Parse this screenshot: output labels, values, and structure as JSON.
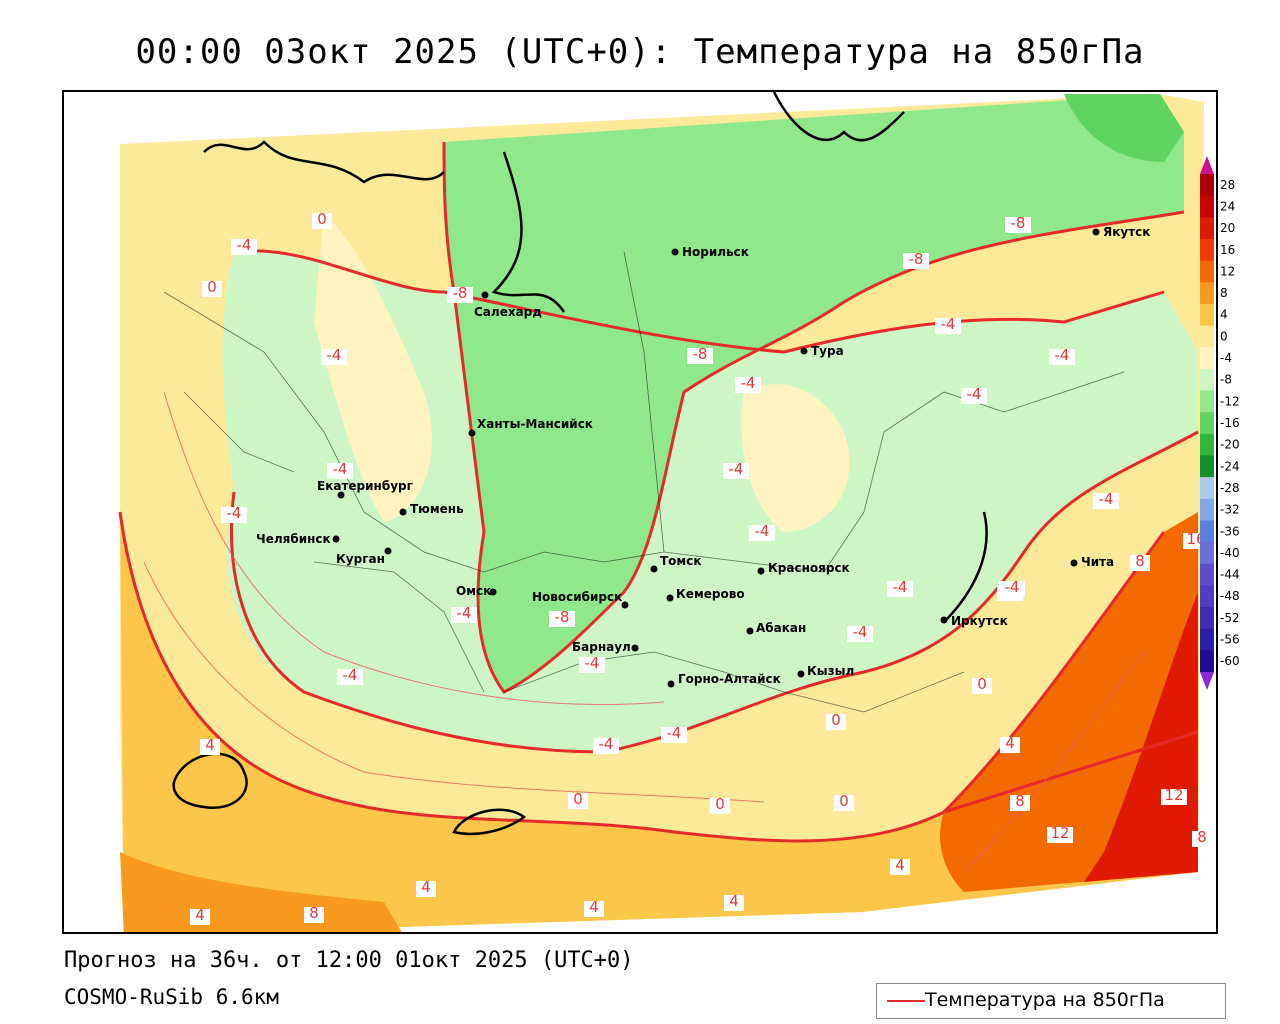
{
  "title": "00:00 03окт 2025 (UTC+0): Температура на 850гПа",
  "subtitle": "Прогноз на 36ч. от 12:00 01окт 2025 (UTC+0)",
  "model": "COSMO-RuSib 6.6км",
  "legend": {
    "label": "Температура на 850гПа",
    "line_color": "#e62a2a"
  },
  "colorbar": {
    "labels": [
      "28",
      "24",
      "20",
      "16",
      "12",
      "8",
      "4",
      "0",
      "-4",
      "-8",
      "-12",
      "-16",
      "-20",
      "-24",
      "-28",
      "-32",
      "-36",
      "-40",
      "-44",
      "-48",
      "-52",
      "-56",
      "-60"
    ],
    "colors": [
      "#a80000",
      "#c80000",
      "#e01a00",
      "#f03a00",
      "#f26a00",
      "#f99a1e",
      "#fcc64a",
      "#fde99a",
      "#fff4c0",
      "#cdf6c4",
      "#8fe88a",
      "#5fd45f",
      "#2fb83a",
      "#13902c",
      "#a8ccec",
      "#80a8e8",
      "#5a80e0",
      "#6e6edc",
      "#5a50cc",
      "#4a40c0",
      "#3a30b0",
      "#2820a0",
      "#1c1090"
    ]
  },
  "cities": [
    {
      "name": "Норильск"
    },
    {
      "name": "Якутск"
    },
    {
      "name": "Салехард"
    },
    {
      "name": "Тура"
    },
    {
      "name": "Ханты-Мансийск"
    },
    {
      "name": "Екатеринбург"
    },
    {
      "name": "Тюмень"
    },
    {
      "name": "Челябинск"
    },
    {
      "name": "Курган"
    },
    {
      "name": "Омск"
    },
    {
      "name": "Новосибирск"
    },
    {
      "name": "Томск"
    },
    {
      "name": "Кемерово"
    },
    {
      "name": "Красноярск"
    },
    {
      "name": "Абакан"
    },
    {
      "name": "Барнаул"
    },
    {
      "name": "Горно-Алтайск"
    },
    {
      "name": "Кызыл"
    },
    {
      "name": "Иркутск"
    },
    {
      "name": "Чита"
    }
  ],
  "contour_labels": [
    "0",
    "-4",
    "-4",
    "0",
    "-8",
    "-4",
    "-4",
    "-8",
    "-4",
    "-8",
    "-8",
    "-4",
    "-4",
    "-4",
    "-4",
    "-4",
    "-4",
    "-4",
    "-4",
    "-4",
    "-4",
    "0",
    "-4",
    "-4",
    "16",
    "8",
    "-4",
    "4",
    "0",
    "0",
    "0",
    "0",
    "4",
    "8",
    "12",
    "12",
    "8",
    "8",
    "4",
    "4",
    "8",
    "4",
    "4",
    "-8",
    "-4",
    "0",
    "4",
    "0",
    "-8",
    "-4"
  ]
}
